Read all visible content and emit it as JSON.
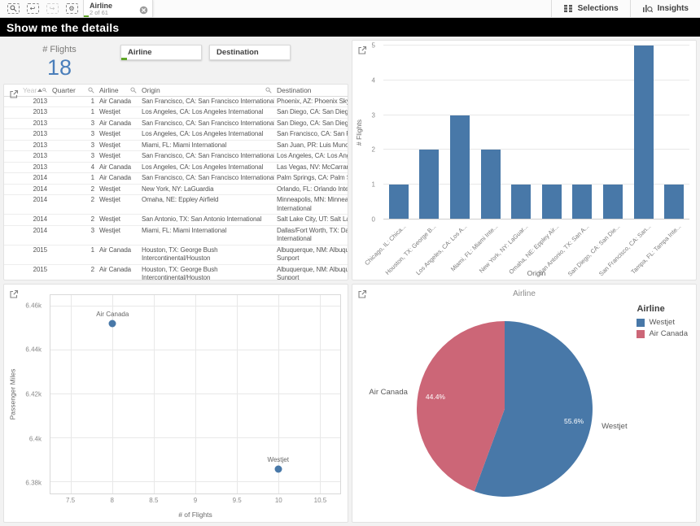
{
  "toolbar": {
    "selection_chip": {
      "field": "Airline",
      "status": "2 of 61"
    },
    "selections_label": "Selections",
    "insights_label": "Insights"
  },
  "title_bar": {
    "title": "Show me the details"
  },
  "kpi": {
    "label": "# Flights",
    "value": "18"
  },
  "filters": [
    {
      "label": "Airline",
      "has_selection": true
    },
    {
      "label": "Destination",
      "has_selection": false
    }
  ],
  "table": {
    "headers": {
      "year": "Year",
      "quarter": "Quarter",
      "airline": "Airline",
      "origin": "Origin",
      "destination": "Destination"
    },
    "rows": [
      {
        "year": "2013",
        "quarter": "1",
        "airline": "Air Canada",
        "origin": "San Francisco, CA: San Francisco International",
        "destination": "Phoenix, AZ: Phoenix Sky Harb"
      },
      {
        "year": "2013",
        "quarter": "1",
        "airline": "Westjet",
        "origin": "Los Angeles, CA: Los Angeles International",
        "destination": "San Diego, CA: San Diego Inter"
      },
      {
        "year": "2013",
        "quarter": "3",
        "airline": "Air Canada",
        "origin": "San Francisco, CA: San Francisco International",
        "destination": "San Diego, CA: San Diego Inter"
      },
      {
        "year": "2013",
        "quarter": "3",
        "airline": "Westjet",
        "origin": "Los Angeles, CA: Los Angeles International",
        "destination": "San Francisco, CA: San Francis"
      },
      {
        "year": "2013",
        "quarter": "3",
        "airline": "Westjet",
        "origin": "Miami, FL: Miami International",
        "destination": "San Juan, PR: Luis Munoz Mari"
      },
      {
        "year": "2013",
        "quarter": "3",
        "airline": "Westjet",
        "origin": "San Francisco, CA: San Francisco International",
        "destination": "Los Angeles, CA: Los Angeles I"
      },
      {
        "year": "2013",
        "quarter": "4",
        "airline": "Air Canada",
        "origin": "Los Angeles, CA: Los Angeles International",
        "destination": "Las Vegas, NV: McCarran Inter"
      },
      {
        "year": "2014",
        "quarter": "1",
        "airline": "Air Canada",
        "origin": "San Francisco, CA: San Francisco International",
        "destination": "Palm Springs, CA: Palm Spring"
      },
      {
        "year": "2014",
        "quarter": "2",
        "airline": "Westjet",
        "origin": "New York, NY: LaGuardia",
        "destination": "Orlando, FL: Orlando Internatio"
      },
      {
        "year": "2014",
        "quarter": "2",
        "airline": "Westjet",
        "origin": "Omaha, NE: Eppley Airfield",
        "destination": "Minneapolis, MN: Minneapolis\nInternational"
      },
      {
        "year": "2014",
        "quarter": "2",
        "airline": "Westjet",
        "origin": "San Antonio, TX: San Antonio International",
        "destination": "Salt Lake City, UT: Salt Lake Cit"
      },
      {
        "year": "2014",
        "quarter": "3",
        "airline": "Westjet",
        "origin": "Miami, FL: Miami International",
        "destination": "Dallas/Fort Worth, TX: Dallas/F\nInternational"
      },
      {
        "year": "2015",
        "quarter": "1",
        "airline": "Air Canada",
        "origin": "Houston, TX: George Bush\nIntercontinental/Houston",
        "destination": "Albuquerque, NM: Albuquerqu\nSunport"
      },
      {
        "year": "2015",
        "quarter": "2",
        "airline": "Air Canada",
        "origin": "Houston, TX: George Bush\nIntercontinental/Houston",
        "destination": "Albuquerque, NM: Albuquerqu\nSunport"
      }
    ]
  },
  "chart_data": [
    {
      "id": "flights-by-origin",
      "type": "bar",
      "categories": [
        "Chicago, IL: Chica...",
        "Houston, TX: George B...",
        "Los Angeles, CA: Los A...",
        "Miami, FL: Miami Inte...",
        "New York, NY: LaGuar...",
        "Omaha, NE: Eppley Air...",
        "San Antonio, TX: San A...",
        "San Diego, CA: San Die...",
        "San Francisco, CA: San...",
        "Tampa, FL: Tampa Inte..."
      ],
      "values": [
        1,
        2,
        3,
        2,
        1,
        1,
        1,
        1,
        5,
        1
      ],
      "xlabel": "Origin",
      "ylabel": "# Flights",
      "ylim": [
        0,
        5
      ],
      "yticks": [
        0,
        1,
        2,
        3,
        4,
        5
      ],
      "bar_color": "#4878a8"
    },
    {
      "id": "miles-vs-flights",
      "type": "scatter",
      "xlabel": "# of Flights",
      "ylabel": "Passenger Miles",
      "xlim": [
        7.25,
        10.75
      ],
      "ylim": [
        6375,
        6465
      ],
      "xticks": [
        7.5,
        8,
        8.5,
        9,
        9.5,
        10,
        10.5
      ],
      "xtick_labels": [
        "7.5",
        "8",
        "8.5",
        "9",
        "9.5",
        "10",
        "10.5"
      ],
      "yticks": [
        6380,
        6400,
        6420,
        6440,
        6460
      ],
      "ytick_labels": [
        "6.38k",
        "6.4k",
        "6.42k",
        "6.44k",
        "6.46k"
      ],
      "points": [
        {
          "label": "Air Canada",
          "x": 8,
          "y": 6452
        },
        {
          "label": "Westjet",
          "x": 10,
          "y": 6386
        }
      ],
      "point_color": "#4878a8"
    },
    {
      "id": "airline-share",
      "type": "pie",
      "title": "Airline",
      "legend_title": "Airline",
      "slices": [
        {
          "label": "Westjet",
          "pct": 55.6,
          "pct_label": "55.6%",
          "color": "#4878a8"
        },
        {
          "label": "Air Canada",
          "pct": 44.4,
          "pct_label": "44.4%",
          "color": "#cc6677"
        }
      ]
    }
  ],
  "colors": {
    "accent_blue": "#4878a8",
    "accent_red": "#cc6677",
    "kpi_blue": "#4a7eba",
    "selection_green": "#61a729"
  }
}
